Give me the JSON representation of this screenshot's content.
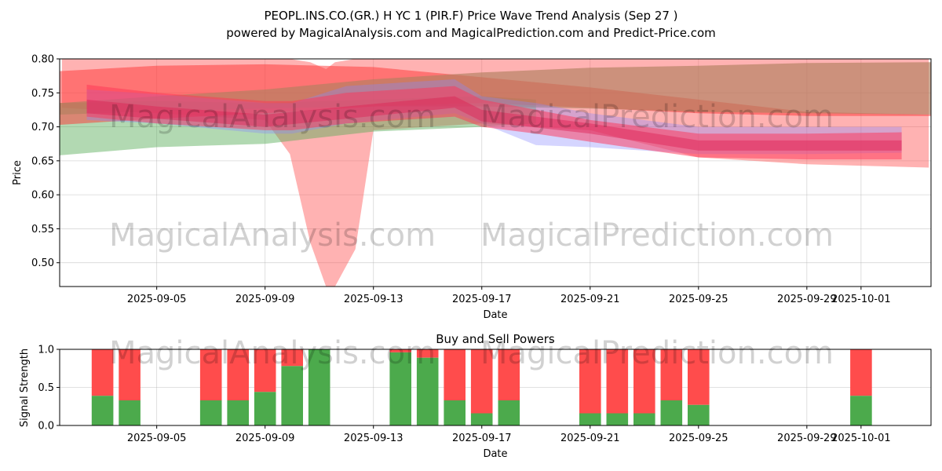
{
  "title_line1": "PEOPL.INS.CO.(GR.) H YC 1 (PIR.F) Price Wave Trend Analysis (Sep 27 )",
  "title_line2": "powered by MagicalAnalysis.com and MagicalPrediction.com and Predict-Price.com",
  "watermarks": [
    "MagicalAnalysis.com",
    "MagicalPrediction.com"
  ],
  "chart_data": [
    {
      "type": "area",
      "xlabel": "Date",
      "ylabel": "Price",
      "x_range": [
        "2025-09-01T10:00",
        "2025-10-03T14:00"
      ],
      "ylim": [
        0.465,
        0.8
      ],
      "x_ticks": [
        "2025-09-05",
        "2025-09-09",
        "2025-09-13",
        "2025-09-17",
        "2025-09-21",
        "2025-09-25",
        "2025-09-29",
        "2025-10-01"
      ],
      "y_ticks": [
        0.5,
        0.55,
        0.6,
        0.65,
        0.7,
        0.75,
        0.8
      ],
      "y_tick_labels": [
        "0.50",
        "0.55",
        "0.60",
        "0.65",
        "0.70",
        "0.75",
        "0.80"
      ],
      "grid": true,
      "bands": [
        {
          "color": "#ff5555",
          "opacity": 0.45,
          "x": [
            "2025-09-01T12:00",
            "2025-09-05",
            "2025-09-09",
            "2025-09-09T22:00",
            "2025-09-10T16:00",
            "2025-09-11T06:00",
            "2025-09-11T14:00",
            "2025-09-12T08:00",
            "2025-09-13",
            "2025-09-17",
            "2025-09-21",
            "2025-09-25",
            "2025-09-29",
            "2025-10-03T12:00"
          ],
          "upper": [
            0.8,
            0.8,
            0.8,
            0.8,
            0.795,
            0.785,
            0.795,
            0.8,
            0.8,
            0.8,
            0.8,
            0.8,
            0.8,
            0.8
          ],
          "lower": [
            0.728,
            0.72,
            0.71,
            0.66,
            0.53,
            0.465,
            0.465,
            0.52,
            0.695,
            0.705,
            0.695,
            0.655,
            0.645,
            0.64
          ]
        },
        {
          "color": "#55aa55",
          "opacity": 0.45,
          "x": [
            "2025-09-01T10:00",
            "2025-09-05",
            "2025-09-09",
            "2025-09-13",
            "2025-09-17",
            "2025-09-19"
          ],
          "upper": [
            0.735,
            0.738,
            0.735,
            0.74,
            0.745,
            0.74
          ],
          "lower": [
            0.658,
            0.67,
            0.675,
            0.693,
            0.7,
            0.705
          ]
        },
        {
          "color": "#ff3333",
          "opacity": 0.5,
          "x": [
            "2025-09-01T10:00",
            "2025-09-05",
            "2025-09-09",
            "2025-09-13",
            "2025-09-17",
            "2025-09-21",
            "2025-09-25",
            "2025-09-29",
            "2025-10-03T14:00"
          ],
          "upper": [
            0.782,
            0.79,
            0.792,
            0.788,
            0.773,
            0.758,
            0.74,
            0.722,
            0.718
          ],
          "lower": [
            0.703,
            0.712,
            0.72,
            0.73,
            0.735,
            0.728,
            0.72,
            0.716,
            0.716
          ]
        },
        {
          "color": "#b08060",
          "opacity": 0.65,
          "x": [
            "2025-09-01T10:00",
            "2025-09-05",
            "2025-09-09",
            "2025-09-13",
            "2025-09-17",
            "2025-09-21",
            "2025-09-25",
            "2025-09-29",
            "2025-10-03T14:00"
          ],
          "upper": [
            0.735,
            0.745,
            0.755,
            0.77,
            0.78,
            0.787,
            0.79,
            0.794,
            0.795
          ],
          "lower": [
            0.718,
            0.723,
            0.727,
            0.73,
            0.73,
            0.727,
            0.722,
            0.72,
            0.718
          ]
        },
        {
          "color": "#8888ff",
          "opacity": 0.35,
          "x": [
            "2025-09-02T10:00",
            "2025-09-05",
            "2025-09-09",
            "2025-09-10",
            "2025-09-12",
            "2025-09-16",
            "2025-09-17",
            "2025-09-19",
            "2025-09-21",
            "2025-09-25",
            "2025-09-29",
            "2025-10-02T12:00"
          ],
          "upper": [
            0.755,
            0.748,
            0.735,
            0.735,
            0.76,
            0.77,
            0.745,
            0.735,
            0.72,
            0.7,
            0.7,
            0.7
          ],
          "lower": [
            0.71,
            0.705,
            0.69,
            0.69,
            0.705,
            0.72,
            0.705,
            0.673,
            0.67,
            0.66,
            0.66,
            0.662
          ]
        },
        {
          "color": "#ff3355",
          "opacity": 0.5,
          "x": [
            "2025-09-02T10:00",
            "2025-09-05",
            "2025-09-09",
            "2025-09-10",
            "2025-09-12",
            "2025-09-16",
            "2025-09-17",
            "2025-09-19",
            "2025-09-21",
            "2025-09-25",
            "2025-09-29",
            "2025-10-02T12:00"
          ],
          "upper": [
            0.762,
            0.75,
            0.738,
            0.738,
            0.75,
            0.76,
            0.74,
            0.725,
            0.71,
            0.69,
            0.69,
            0.692
          ],
          "lower": [
            0.715,
            0.705,
            0.695,
            0.695,
            0.705,
            0.715,
            0.7,
            0.69,
            0.678,
            0.655,
            0.652,
            0.652
          ]
        },
        {
          "color": "#dd2255",
          "opacity": 0.45,
          "x": [
            "2025-09-02T10:00",
            "2025-09-05",
            "2025-09-09",
            "2025-09-12",
            "2025-09-16",
            "2025-09-17",
            "2025-09-21",
            "2025-09-25",
            "2025-10-02T12:00"
          ],
          "upper": [
            0.74,
            0.73,
            0.718,
            0.73,
            0.745,
            0.725,
            0.705,
            0.68,
            0.68
          ],
          "lower": [
            0.72,
            0.712,
            0.7,
            0.712,
            0.728,
            0.708,
            0.69,
            0.665,
            0.665
          ]
        }
      ]
    },
    {
      "type": "bar",
      "title": "Buy and Sell Powers",
      "xlabel": "Date",
      "ylabel": "Signal Strength",
      "ylim": [
        0,
        1
      ],
      "y_ticks": [
        0,
        0.5,
        1
      ],
      "y_tick_labels": [
        "0.0",
        "0.5",
        "1.0"
      ],
      "x_ticks": [
        "2025-09-05",
        "2025-09-09",
        "2025-09-13",
        "2025-09-17",
        "2025-09-21",
        "2025-09-25",
        "2025-09-29",
        "2025-10-01"
      ],
      "buy_color": "#4caa4c",
      "sell_color": "#ff4c4c",
      "bars": [
        {
          "date": "2025-09-03",
          "buy": 0.39
        },
        {
          "date": "2025-09-04",
          "buy": 0.33
        },
        {
          "date": "2025-09-07",
          "buy": 0.33
        },
        {
          "date": "2025-09-08",
          "buy": 0.33
        },
        {
          "date": "2025-09-09",
          "buy": 0.44
        },
        {
          "date": "2025-09-10",
          "buy": 0.78
        },
        {
          "date": "2025-09-11",
          "buy": 1.0
        },
        {
          "date": "2025-09-14",
          "buy": 0.96
        },
        {
          "date": "2025-09-15",
          "buy": 0.89
        },
        {
          "date": "2025-09-16",
          "buy": 0.33
        },
        {
          "date": "2025-09-17",
          "buy": 0.16
        },
        {
          "date": "2025-09-18",
          "buy": 0.33
        },
        {
          "date": "2025-09-21",
          "buy": 0.16
        },
        {
          "date": "2025-09-22",
          "buy": 0.16
        },
        {
          "date": "2025-09-23",
          "buy": 0.16
        },
        {
          "date": "2025-09-24",
          "buy": 0.33
        },
        {
          "date": "2025-09-25",
          "buy": 0.27
        },
        {
          "date": "2025-10-01",
          "buy": 0.39
        }
      ]
    }
  ]
}
